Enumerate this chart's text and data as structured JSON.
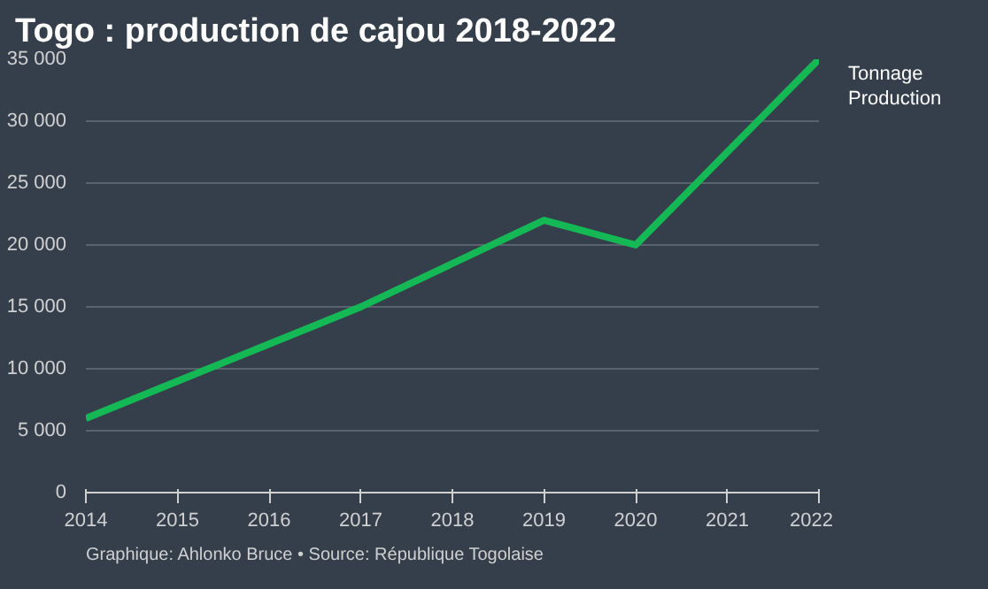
{
  "chart_data": {
    "type": "line",
    "title": "Togo : production de cajou 2018-2022",
    "x": [
      2014,
      2015,
      2016,
      2017,
      2018,
      2019,
      2020,
      2021,
      2022
    ],
    "series": [
      {
        "name": "Tonnage Production",
        "color": "#14b855",
        "values": [
          6000,
          9000,
          12000,
          15000,
          18500,
          22000,
          20000,
          27500,
          35000
        ]
      }
    ],
    "xlim": [
      2014,
      2022
    ],
    "xticks": [
      2014,
      2015,
      2016,
      2017,
      2018,
      2019,
      2020,
      2021,
      2022
    ],
    "ylim": [
      0,
      35000
    ],
    "yticks": [
      0,
      {
        "value": 5000,
        "label": "5 000"
      },
      {
        "value": 10000,
        "label": "10 000"
      },
      {
        "value": 15000,
        "label": "15 000"
      },
      {
        "value": 20000,
        "label": "20 000"
      },
      {
        "value": 25000,
        "label": "25 000"
      },
      {
        "value": 30000,
        "label": "30 000"
      },
      {
        "value": 35000,
        "label": "35 000"
      }
    ],
    "grid": "y",
    "legend": false,
    "marker": "none",
    "line_style": "solid",
    "annotations": [
      "Graphique: Ahlonko Bruce • Source: République Togolaise"
    ]
  }
}
